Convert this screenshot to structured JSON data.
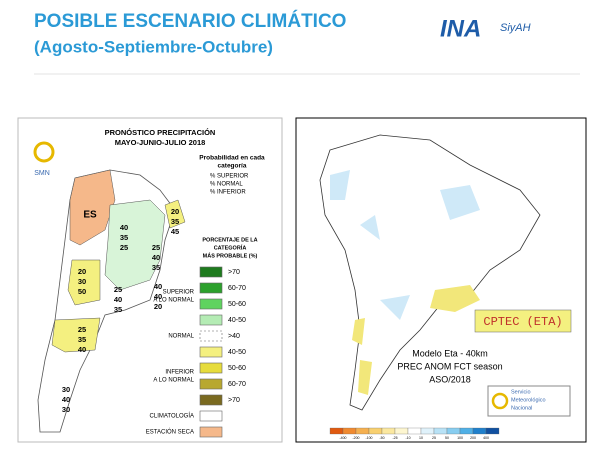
{
  "header": {
    "title": "POSIBLE ESCENARIO CLIMÁTICO",
    "subtitle": "(Agosto-Septiembre-Octubre)",
    "logo": "INA",
    "logo_sub": "SiyAH"
  },
  "left_map": {
    "title": "PRONÓSTICO PRECIPITACIÓN",
    "period": "MAYO-JUNIO-JULIO 2018",
    "agency": "SMN",
    "prob_title": [
      "Probabilidad en cada",
      "categoría"
    ],
    "prob_lines": [
      "% SUPERIOR",
      "% NORMAL",
      "% INFERIOR"
    ],
    "legend_title": [
      "PORCENTAJE DE LA",
      "CATEGORÍA",
      "MÁS PROBABLE (%)"
    ],
    "legend": [
      {
        "name": [
          "SUPERIOR",
          "A LO NORMAL"
        ],
        "items": [
          {
            "label": ">70",
            "color": "#1e7b1e"
          },
          {
            "label": "60-70",
            "color": "#2ca02c"
          },
          {
            "label": "50-60",
            "color": "#5fd35f"
          },
          {
            "label": "40-50",
            "color": "#b4ecb4"
          }
        ]
      },
      {
        "name": [
          "NORMAL"
        ],
        "items": [
          {
            "label": ">40",
            "color": "#ffffff",
            "dashed": true
          }
        ]
      },
      {
        "name": [
          "INFERIOR",
          "A LO NORMAL"
        ],
        "items": [
          {
            "label": "40-50",
            "color": "#f4f080"
          },
          {
            "label": "50-60",
            "color": "#e6dc3c"
          },
          {
            "label": "60-70",
            "color": "#b8a830"
          },
          {
            "label": ">70",
            "color": "#7a6a20"
          }
        ]
      },
      {
        "name": [
          "CLIMATOLOGÍA"
        ],
        "items": [
          {
            "color": "#ffffff"
          }
        ]
      },
      {
        "name": [
          "ESTACIÓN SECA"
        ],
        "items": [
          {
            "color": "#f5b88a"
          }
        ]
      }
    ],
    "region_label": "ES",
    "triplets": [
      [
        20,
        35,
        45
      ],
      [
        40,
        35,
        25
      ],
      [
        25,
        40,
        35
      ],
      [
        20,
        30,
        50
      ],
      [
        25,
        40,
        35
      ],
      [
        40,
        40,
        20
      ],
      [
        25,
        35,
        40
      ],
      [
        30,
        40,
        30
      ]
    ]
  },
  "right_map": {
    "label": "CPTEC (ETA)",
    "caption": [
      "Modelo Eta - 40km",
      "PREC ANOM FCT season",
      "ASO/2018"
    ],
    "agency": [
      "Servicio",
      "Meteorológico",
      "Nacional"
    ],
    "colorbar": {
      "ticks": [
        -400,
        -200,
        -100,
        -50,
        -25,
        -10,
        10,
        25,
        50,
        100,
        200,
        400
      ],
      "colors": [
        "#e05a10",
        "#f08a30",
        "#f5b050",
        "#f8d070",
        "#fbe8a0",
        "#fdf6d0",
        "#ffffff",
        "#e0f2fb",
        "#b8e2f6",
        "#88cdf0",
        "#50b0e6",
        "#2080cc",
        "#1050a0"
      ]
    }
  }
}
